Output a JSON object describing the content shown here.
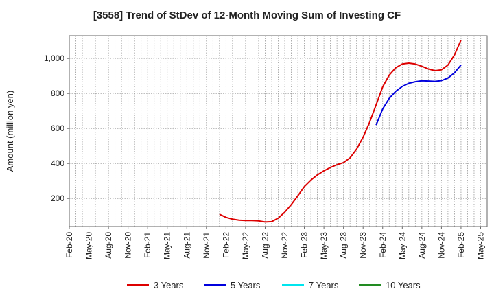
{
  "chart_data": {
    "type": "line",
    "title": "[3558]  Trend of StDev of 12-Month Moving Sum of Investing CF",
    "ylabel": "Amount (million yen)",
    "xlabel": "",
    "grid": true,
    "legend_position": "bottom",
    "x_ticks": [
      "Feb-20",
      "May-20",
      "Aug-20",
      "Nov-20",
      "Feb-21",
      "May-21",
      "Aug-21",
      "Nov-21",
      "Feb-22",
      "May-22",
      "Aug-22",
      "Nov-22",
      "Feb-23",
      "May-23",
      "Aug-23",
      "Nov-23",
      "Feb-24",
      "May-24",
      "Aug-24",
      "Nov-24",
      "Feb-25",
      "May-25"
    ],
    "y_ticks": [
      200,
      400,
      600,
      800,
      1000
    ],
    "y_tick_labels": [
      "200",
      "400",
      "600",
      "800",
      "1,000"
    ],
    "ylim": [
      40,
      1130
    ],
    "x_start": "Feb-20",
    "series": [
      {
        "name": "3 Years",
        "color": "#dd0000",
        "x": [
          "Jan-22",
          "Feb-22",
          "Mar-22",
          "Apr-22",
          "May-22",
          "Jun-22",
          "Jul-22",
          "Aug-22",
          "Sep-22",
          "Oct-22",
          "Nov-22",
          "Dec-22",
          "Jan-23",
          "Feb-23",
          "Mar-23",
          "Apr-23",
          "May-23",
          "Jun-23",
          "Jul-23",
          "Aug-23",
          "Sep-23",
          "Oct-23",
          "Nov-23",
          "Dec-23",
          "Jan-24",
          "Feb-24",
          "Mar-24",
          "Apr-24",
          "May-24",
          "Jun-24",
          "Jul-24",
          "Aug-24",
          "Sep-24",
          "Oct-24",
          "Nov-24",
          "Dec-24",
          "Jan-25",
          "Feb-25"
        ],
        "values": [
          110,
          92,
          82,
          76,
          74,
          74,
          72,
          66,
          68,
          88,
          122,
          165,
          215,
          268,
          305,
          335,
          358,
          377,
          393,
          405,
          432,
          482,
          550,
          635,
          735,
          838,
          905,
          947,
          968,
          973,
          968,
          955,
          940,
          930,
          935,
          962,
          1020,
          1105
        ]
      },
      {
        "name": "5 Years",
        "color": "#0000dd",
        "x": [
          "Jan-24",
          "Feb-24",
          "Mar-24",
          "Apr-24",
          "May-24",
          "Jun-24",
          "Jul-24",
          "Aug-24",
          "Sep-24",
          "Oct-24",
          "Nov-24",
          "Dec-24",
          "Jan-25",
          "Feb-25"
        ],
        "values": [
          620,
          712,
          772,
          812,
          840,
          858,
          867,
          872,
          871,
          869,
          873,
          888,
          918,
          963
        ]
      },
      {
        "name": "7 Years",
        "color": "#00e5ee",
        "x": [],
        "values": []
      },
      {
        "name": "10 Years",
        "color": "#228b22",
        "x": [],
        "values": []
      }
    ]
  }
}
